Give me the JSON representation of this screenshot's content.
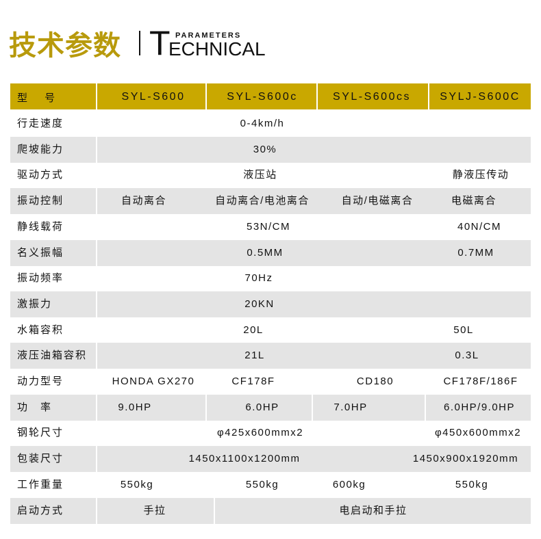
{
  "header": {
    "title_cn": "技术参数",
    "title_en_first": "T",
    "title_en_rest": "ECHNICAL",
    "title_en_small": "PARAMETERS"
  },
  "colors": {
    "accent": "#c9a800",
    "title": "#b89a0c",
    "row_alt": "#e4e4e4"
  },
  "table": {
    "head": {
      "label": "型　 号",
      "models": [
        "SYL-S600",
        "SYL-S600c",
        "SYL-S600cs",
        "SYLJ-S600C"
      ]
    },
    "rows": [
      {
        "label": "行走速度",
        "values": [
          "0-4km/h"
        ]
      },
      {
        "label": "爬坡能力",
        "values": [
          "30%"
        ]
      },
      {
        "label": "驱动方式",
        "values": [
          "液压站",
          "静液压传动"
        ]
      },
      {
        "label": "振动控制",
        "values": [
          "自动离合",
          "自动离合/电池离合",
          "自动/电磁离合",
          "电磁离合"
        ]
      },
      {
        "label": "静线载荷",
        "values": [
          "53N/CM",
          "40N/CM"
        ]
      },
      {
        "label": "名义振幅",
        "values": [
          "0.5MM",
          "0.7MM"
        ]
      },
      {
        "label": "振动频率",
        "values": [
          "70Hz"
        ]
      },
      {
        "label": "激振力",
        "values": [
          "20KN"
        ]
      },
      {
        "label": "水箱容积",
        "values": [
          "20L",
          "50L"
        ]
      },
      {
        "label": "液压油箱容积",
        "values": [
          "21L",
          "0.3L"
        ]
      },
      {
        "label": "动力型号",
        "values": [
          "HONDA GX270",
          "CF178F",
          "CD180",
          "CF178F/186F"
        ]
      },
      {
        "label": "功　率",
        "values": [
          "9.0HP",
          "6.0HP",
          "7.0HP",
          "6.0HP/9.0HP"
        ]
      },
      {
        "label": "钢轮尺寸",
        "values": [
          "φ425x600mmx2",
          "φ450x600mmx2"
        ]
      },
      {
        "label": "包装尺寸",
        "values": [
          "1450x1100x1200mm",
          "1450x900x1920mm"
        ]
      },
      {
        "label": "工作重量",
        "values": [
          "550kg",
          "550kg",
          "600kg",
          "550kg"
        ]
      },
      {
        "label": "启动方式",
        "values": [
          "手拉",
          "电启动和手拉"
        ]
      }
    ]
  }
}
